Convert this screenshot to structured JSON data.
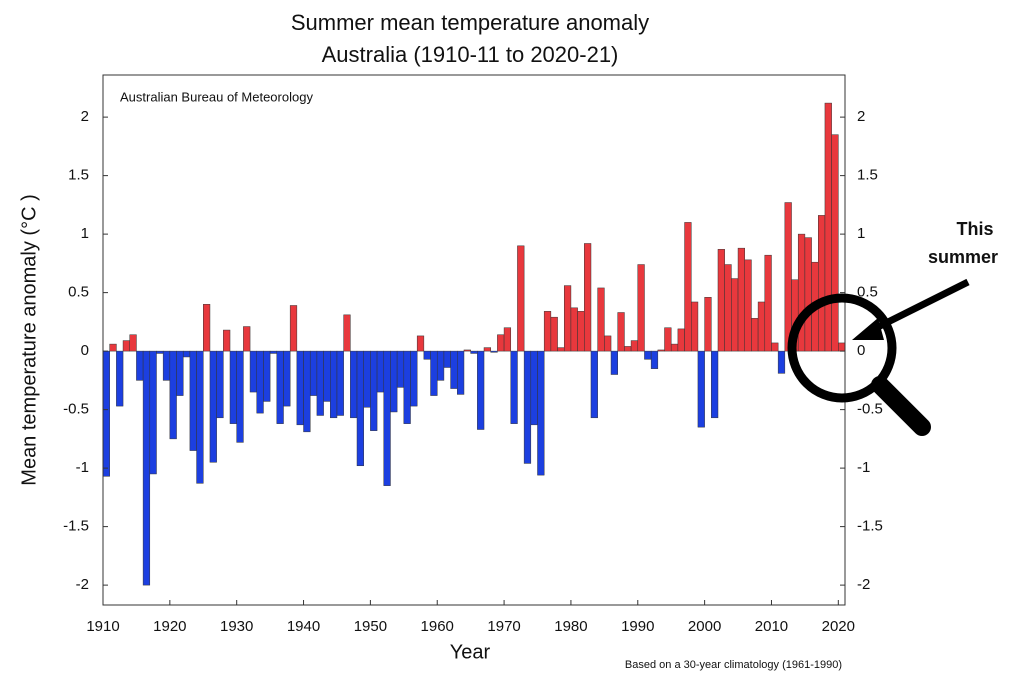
{
  "chart_data": {
    "type": "bar",
    "title": [
      "Summer mean temperature anomaly",
      "Australia (1910-11 to 2020-21)"
    ],
    "source": "Australian Bureau of Meteorology",
    "ylabel": "Mean temperature anomaly (°C )",
    "xlabel": "Year",
    "note": "Based on a 30-year climatology (1961-1990)",
    "annotation": [
      "This",
      "summer"
    ],
    "x": [
      1910,
      1911,
      1912,
      1913,
      1914,
      1915,
      1916,
      1917,
      1918,
      1919,
      1920,
      1921,
      1922,
      1923,
      1924,
      1925,
      1926,
      1927,
      1928,
      1929,
      1930,
      1931,
      1932,
      1933,
      1934,
      1935,
      1936,
      1937,
      1938,
      1939,
      1940,
      1941,
      1942,
      1943,
      1944,
      1945,
      1946,
      1947,
      1948,
      1949,
      1950,
      1951,
      1952,
      1953,
      1954,
      1955,
      1956,
      1957,
      1958,
      1959,
      1960,
      1961,
      1962,
      1963,
      1964,
      1965,
      1966,
      1967,
      1968,
      1969,
      1970,
      1971,
      1972,
      1973,
      1974,
      1975,
      1976,
      1977,
      1978,
      1979,
      1980,
      1981,
      1982,
      1983,
      1984,
      1985,
      1986,
      1987,
      1988,
      1989,
      1990,
      1991,
      1992,
      1993,
      1994,
      1995,
      1996,
      1997,
      1998,
      1999,
      2000,
      2001,
      2002,
      2003,
      2004,
      2005,
      2006,
      2007,
      2008,
      2009,
      2010,
      2011,
      2012,
      2013,
      2014,
      2015,
      2016,
      2017,
      2018,
      2019,
      2020
    ],
    "values": [
      -1.07,
      0.06,
      -0.47,
      0.09,
      0.14,
      -0.25,
      -2.0,
      -1.05,
      -0.02,
      -0.25,
      -0.75,
      -0.38,
      -0.05,
      -0.85,
      -1.13,
      0.4,
      -0.95,
      -0.57,
      0.18,
      -0.62,
      -0.78,
      0.21,
      -0.35,
      -0.53,
      -0.43,
      -0.02,
      -0.62,
      -0.47,
      0.39,
      -0.63,
      -0.69,
      -0.38,
      -0.55,
      -0.43,
      -0.57,
      -0.55,
      0.31,
      -0.57,
      -0.98,
      -0.48,
      -0.68,
      -0.35,
      -1.15,
      -0.52,
      -0.31,
      -0.62,
      -0.47,
      0.13,
      -0.07,
      -0.38,
      -0.25,
      -0.14,
      -0.32,
      -0.37,
      0.01,
      -0.02,
      -0.67,
      0.03,
      -0.01,
      0.14,
      0.2,
      -0.62,
      0.9,
      -0.96,
      -0.63,
      -1.06,
      0.34,
      0.29,
      0.03,
      0.56,
      0.37,
      0.34,
      0.92,
      -0.57,
      0.54,
      0.13,
      -0.2,
      0.33,
      0.04,
      0.09,
      0.74,
      -0.07,
      -0.15,
      0.01,
      0.2,
      0.06,
      0.19,
      1.1,
      0.42,
      -0.65,
      0.46,
      -0.57,
      0.87,
      0.74,
      0.62,
      0.88,
      0.78,
      0.28,
      0.42,
      0.82,
      0.07,
      -0.19,
      1.27,
      0.61,
      1.0,
      0.97,
      0.76,
      1.16,
      2.12,
      1.85,
      0.07
    ],
    "positive_color": "#e8383d",
    "negative_color": "#1c3fe0",
    "xlim": [
      1910,
      2021
    ],
    "xticks": [
      1910,
      1920,
      1930,
      1940,
      1950,
      1960,
      1970,
      1980,
      1990,
      2000,
      2010,
      2020
    ],
    "ylim": [
      -2.17,
      2.36
    ],
    "yticks": [
      -2,
      -1.5,
      -1,
      -0.5,
      0,
      0.5,
      1,
      1.5,
      2
    ],
    "y2lim": [
      -2.17,
      2.36
    ],
    "y2ticks": [
      -2,
      -1.5,
      -1,
      -0.5,
      0,
      0.5,
      1,
      1.5,
      2
    ]
  }
}
